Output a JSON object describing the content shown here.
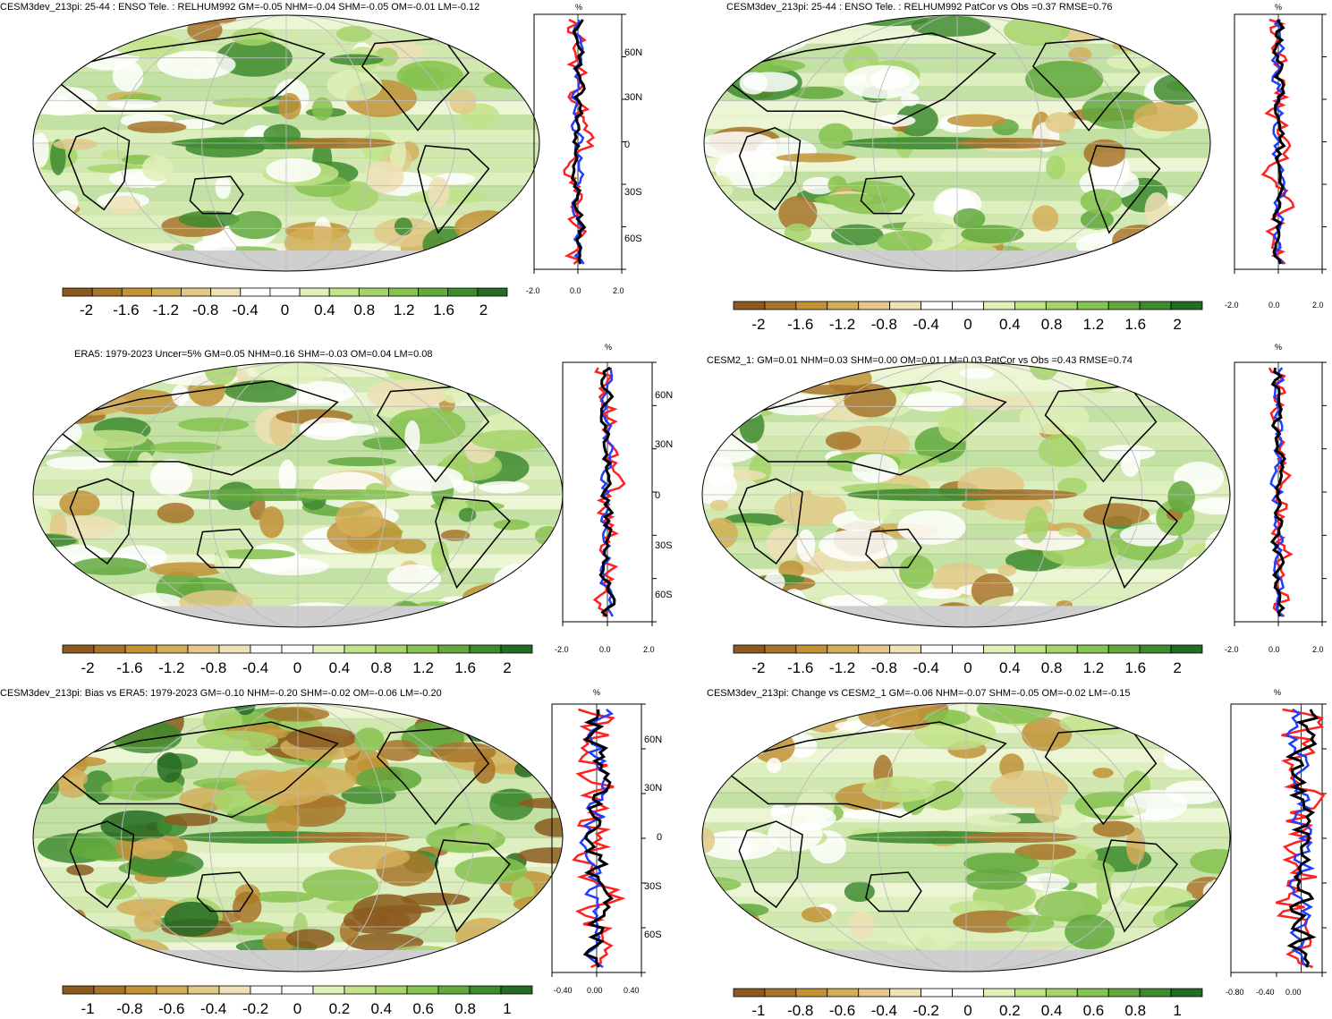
{
  "colors": {
    "palette": [
      "#8c5a1e",
      "#a8742a",
      "#c19236",
      "#d3ae58",
      "#e2c987",
      "#efe1b6",
      "#ffffff",
      "#ffffff",
      "#dff0b8",
      "#c2e38a",
      "#a6d36a",
      "#86c24f",
      "#62a83d",
      "#3e8b2f",
      "#246b23"
    ],
    "land_gray": "#cfcfcf",
    "profile_model": "#000000",
    "profile_obs": "#ff2020",
    "profile_alt": "#1f3fff"
  },
  "colorbar_big": [
    "-2",
    "-1.6",
    "-1.2",
    "-0.8",
    "-0.4",
    "0",
    "0.4",
    "0.8",
    "1.2",
    "1.6",
    "2"
  ],
  "colorbar_small": [
    "-1",
    "-0.8",
    "-0.6",
    "-0.4",
    "-0.2",
    "0",
    "0.2",
    "0.4",
    "0.6",
    "0.8",
    "1"
  ],
  "lat_labels": [
    "60N",
    "30N",
    "0",
    "30S",
    "60S"
  ],
  "panels": [
    {
      "id": "p1",
      "title": "CESM3dev_213pi: 25-44 : ENSO Tele. : RELHUM992 GM=-0.05 NHM=-0.04 SHM=-0.05 OM=-0.01 LM=-0.12",
      "unit": "%",
      "profile_ticks": [
        "-2.0",
        "0.0",
        "2.0"
      ],
      "show_lat": true,
      "colorbar": "big"
    },
    {
      "id": "p2",
      "title": "CESM3dev_213pi: 25-44 : ENSO Tele. : RELHUM992 PatCor vs Obs =0.37 RMSE=0.76",
      "unit": "%",
      "profile_ticks": [
        "-2.0",
        "0.0",
        "2.0"
      ],
      "show_lat": false,
      "colorbar": "big"
    },
    {
      "id": "p3",
      "title": "ERA5: 1979-2023 Uncer=5% GM=0.05 NHM=0.16 SHM=-0.03 OM=0.04 LM=0.08",
      "unit": "%",
      "profile_ticks": [
        "-2.0",
        "0.0",
        "2.0"
      ],
      "show_lat": true,
      "colorbar": "big"
    },
    {
      "id": "p4",
      "title": "CESM2_1: GM=0.01 NHM=0.03 SHM=0.00 OM=0.01 LM=0.03 PatCor vs Obs =0.43 RMSE=0.74",
      "unit": "%",
      "profile_ticks": [
        "-2.0",
        "0.0",
        "2.0"
      ],
      "show_lat": false,
      "colorbar": "big"
    },
    {
      "id": "p5",
      "title": "CESM3dev_213pi: Bias vs ERA5: 1979-2023 GM=-0.10 NHM=-0.20 SHM=-0.02 OM=-0.06 LM=-0.20",
      "unit": "%",
      "profile_ticks": [
        "-0.40",
        "0.00",
        "0.40"
      ],
      "show_lat": true,
      "colorbar": "small"
    },
    {
      "id": "p6",
      "title": "CESM3dev_213pi: Change vs CESM2_1 GM=-0.06 NHM=-0.07 SHM=-0.05 OM=-0.02 LM=-0.15",
      "unit": "%",
      "profile_ticks": [
        "-0.80",
        "-0.40",
        "0.00"
      ],
      "show_lat": false,
      "colorbar": "small"
    }
  ],
  "chart_data": [
    {
      "type": "heatmap",
      "panel": "p1",
      "title": "CESM3dev_213pi: 25-44 : ENSO Tele. : RELHUM992 GM=-0.05 NHM=-0.04 SHM=-0.05 OM=-0.01 LM=-0.12",
      "colorbar_ticks": [
        -2,
        -1.6,
        -1.2,
        -0.8,
        -0.4,
        0,
        0.4,
        0.8,
        1.2,
        1.6,
        2
      ],
      "profile": {
        "xlim": [
          -2,
          2
        ],
        "ylim": [
          -80,
          80
        ]
      }
    },
    {
      "type": "heatmap",
      "panel": "p2",
      "title": "CESM3dev_213pi: 25-44 : ENSO Tele. : RELHUM992 PatCor vs Obs =0.37 RMSE=0.76",
      "colorbar_ticks": [
        -2,
        -1.6,
        -1.2,
        -0.8,
        -0.4,
        0,
        0.4,
        0.8,
        1.2,
        1.6,
        2
      ],
      "profile": {
        "xlim": [
          -2,
          2
        ],
        "ylim": [
          -80,
          80
        ]
      }
    },
    {
      "type": "heatmap",
      "panel": "p3",
      "title": "ERA5: 1979-2023 Uncer=5% GM=0.05 NHM=0.16 SHM=-0.03 OM=0.04 LM=0.08",
      "colorbar_ticks": [
        -2,
        -1.6,
        -1.2,
        -0.8,
        -0.4,
        0,
        0.4,
        0.8,
        1.2,
        1.6,
        2
      ],
      "profile": {
        "xlim": [
          -2,
          2
        ],
        "ylim": [
          -80,
          80
        ]
      }
    },
    {
      "type": "heatmap",
      "panel": "p4",
      "title": "CESM2_1: GM=0.01 NHM=0.03 SHM=0.00 OM=0.01 LM=0.03 PatCor vs Obs =0.43 RMSE=0.74",
      "colorbar_ticks": [
        -2,
        -1.6,
        -1.2,
        -0.8,
        -0.4,
        0,
        0.4,
        0.8,
        1.2,
        1.6,
        2
      ],
      "profile": {
        "xlim": [
          -2,
          2
        ],
        "ylim": [
          -80,
          80
        ]
      }
    },
    {
      "type": "heatmap",
      "panel": "p5",
      "title": "CESM3dev_213pi: Bias vs ERA5: 1979-2023 GM=-0.10 NHM=-0.20 SHM=-0.02 OM=-0.06 LM=-0.20",
      "colorbar_ticks": [
        -1,
        -0.8,
        -0.6,
        -0.4,
        -0.2,
        0,
        0.2,
        0.4,
        0.6,
        0.8,
        1
      ],
      "profile": {
        "xlim": [
          -0.5,
          0.5
        ],
        "ylim": [
          -80,
          80
        ]
      }
    },
    {
      "type": "heatmap",
      "panel": "p6",
      "title": "CESM3dev_213pi: Change vs CESM2_1 GM=-0.06 NHM=-0.07 SHM=-0.05 OM=-0.02 LM=-0.15",
      "colorbar_ticks": [
        -1,
        -0.8,
        -0.6,
        -0.4,
        -0.2,
        0,
        0.2,
        0.4,
        0.6,
        0.8,
        1
      ],
      "profile": {
        "xlim": [
          -1.0,
          0.3
        ],
        "ylim": [
          -80,
          80
        ]
      }
    }
  ]
}
